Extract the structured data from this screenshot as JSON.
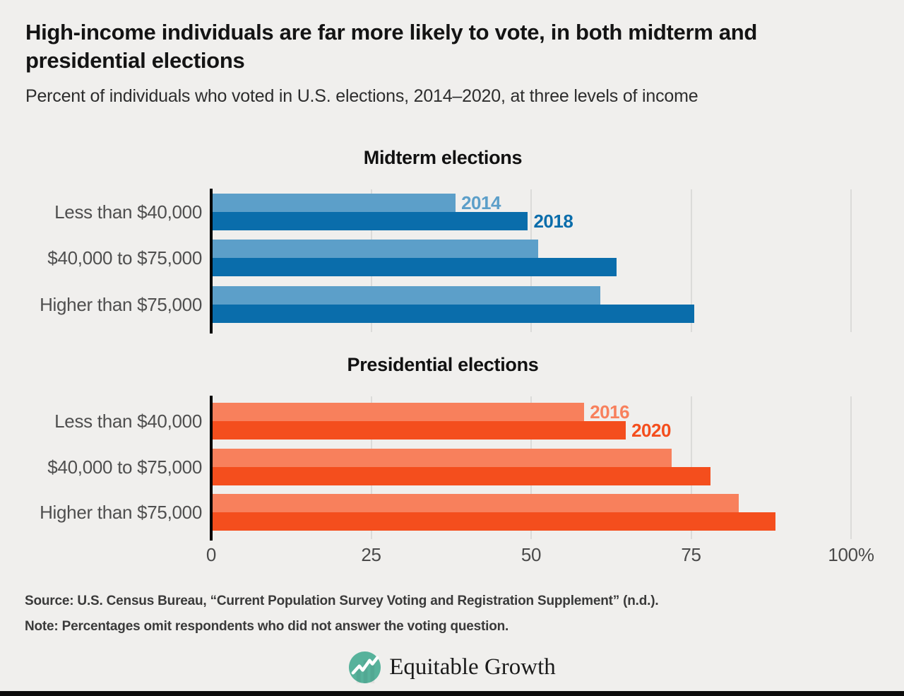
{
  "page": {
    "title": "High-income individuals are far more likely to vote, in both midterm and presidential elections",
    "subtitle": "Percent of individuals who voted in U.S. elections, 2014–2020, at three levels of income"
  },
  "chart_data": [
    {
      "type": "bar",
      "orientation": "horizontal",
      "title": "Midterm elections",
      "categories": [
        "Less than $40,000",
        "$40,000 to $75,000",
        "Higher than $75,000"
      ],
      "series": [
        {
          "name": "2014",
          "color": "#5c9fc9",
          "values": [
            38.2,
            51.1,
            60.8
          ]
        },
        {
          "name": "2018",
          "color": "#0a6dab",
          "values": [
            49.5,
            63.4,
            75.5
          ]
        }
      ],
      "xlim": [
        0,
        100
      ],
      "xticks": [
        0,
        25,
        50,
        75,
        100
      ],
      "grid": true,
      "legend": "year labels beside first category bars"
    },
    {
      "type": "bar",
      "orientation": "horizontal",
      "title": "Presidential elections",
      "categories": [
        "Less than $40,000",
        "$40,000 to $75,000",
        "Higher than $75,000"
      ],
      "series": [
        {
          "name": "2016",
          "color": "#f8805c",
          "values": [
            58.3,
            72.0,
            82.5
          ]
        },
        {
          "name": "2020",
          "color": "#f44e1d",
          "values": [
            64.8,
            78.0,
            88.2
          ]
        }
      ],
      "xlim": [
        0,
        100
      ],
      "xticks": [
        0,
        25,
        50,
        75,
        100
      ],
      "grid": true,
      "legend": "year labels beside first category bars"
    }
  ],
  "x_axis": {
    "tick_values": [
      0,
      25,
      50,
      75,
      100
    ],
    "tick_labels": [
      "0",
      "25",
      "50",
      "75",
      "100%"
    ]
  },
  "footer": {
    "source": "Source: U.S. Census Bureau, “Current Population Survey Voting and Registration Supplement” (n.d.).",
    "note": "Note: Percentages omit respondents who did not answer the voting question.",
    "logo_text": "Equitable Growth"
  },
  "colors": {
    "background": "#f0efed",
    "axis_line": "#000000",
    "gridline": "#dbdbd9",
    "logo_teal": "#57b29b",
    "bottom_bar": "#0b0b0b"
  }
}
